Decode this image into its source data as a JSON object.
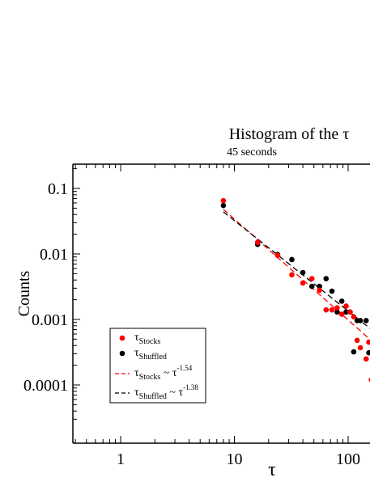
{
  "chart_data": {
    "type": "scatter",
    "title": "Histogram of the τ",
    "subtitle": "45 seconds",
    "xlabel": "τ",
    "ylabel": "Counts",
    "x_scale": "log",
    "y_scale": "log",
    "xlim": [
      0.4,
      160
    ],
    "ylim": [
      2.5e-05,
      0.25
    ],
    "x_tick_labels": [
      "1",
      "10",
      "100"
    ],
    "y_tick_labels": [
      "0.1",
      "0.01",
      "0.001",
      "0.0001"
    ],
    "grid": false,
    "legend_position": "bottom-left",
    "series": [
      {
        "name": "τStocks",
        "kind": "points",
        "color": "#ff0000",
        "points": [
          [
            8,
            0.065
          ],
          [
            16,
            0.015
          ],
          [
            24,
            0.0095
          ],
          [
            32,
            0.0048
          ],
          [
            40,
            0.0036
          ],
          [
            48,
            0.0042
          ],
          [
            56,
            0.0028
          ],
          [
            64,
            0.0014
          ],
          [
            72,
            0.0014
          ],
          [
            80,
            0.0015
          ],
          [
            88,
            0.0012
          ],
          [
            96,
            0.0016
          ],
          [
            104,
            0.0013
          ],
          [
            112,
            0.0011
          ],
          [
            120,
            0.00048
          ],
          [
            128,
            0.00037
          ],
          [
            144,
            0.00025
          ],
          [
            152,
            0.00045
          ],
          [
            160,
            0.00012
          ]
        ]
      },
      {
        "name": "τShuffled",
        "kind": "points",
        "color": "#000000",
        "points": [
          [
            8,
            0.055
          ],
          [
            16,
            0.014
          ],
          [
            24,
            0.0098
          ],
          [
            32,
            0.0082
          ],
          [
            40,
            0.0052
          ],
          [
            48,
            0.0032
          ],
          [
            56,
            0.0032
          ],
          [
            64,
            0.0042
          ],
          [
            72,
            0.0027
          ],
          [
            80,
            0.0013
          ],
          [
            88,
            0.0019
          ],
          [
            96,
            0.0013
          ],
          [
            104,
            0.0013
          ],
          [
            112,
            0.00032
          ],
          [
            120,
            0.00096
          ],
          [
            128,
            0.00096
          ],
          [
            144,
            0.00096
          ],
          [
            152,
            0.00031
          ]
        ]
      },
      {
        "name": "τStocks ~ τ^-1.54",
        "kind": "fit",
        "color": "#ff0000",
        "exponent": -1.54,
        "x_range": [
          8,
          160
        ],
        "y_at_x_start": 0.048
      },
      {
        "name": "τShuffled ~ τ^-1.38",
        "kind": "fit",
        "color": "#000000",
        "exponent": -1.38,
        "x_range": [
          8,
          160
        ],
        "y_at_x_start": 0.044
      }
    ],
    "legend": [
      {
        "base": "τ",
        "sub": "Stocks",
        "rest": "",
        "sup": "",
        "symbol": "dot",
        "color": "#ff0000"
      },
      {
        "base": "τ",
        "sub": "Shuffled",
        "rest": "",
        "sup": "",
        "symbol": "dot",
        "color": "#000000"
      },
      {
        "base": "τ",
        "sub": "Stocks",
        "rest": " ~ τ",
        "sup": "-1.54",
        "symbol": "dash",
        "color": "#ff0000"
      },
      {
        "base": "τ",
        "sub": "Shuffled",
        "rest": " ~ τ",
        "sup": "-1.38",
        "symbol": "dash",
        "color": "#000000"
      }
    ]
  }
}
